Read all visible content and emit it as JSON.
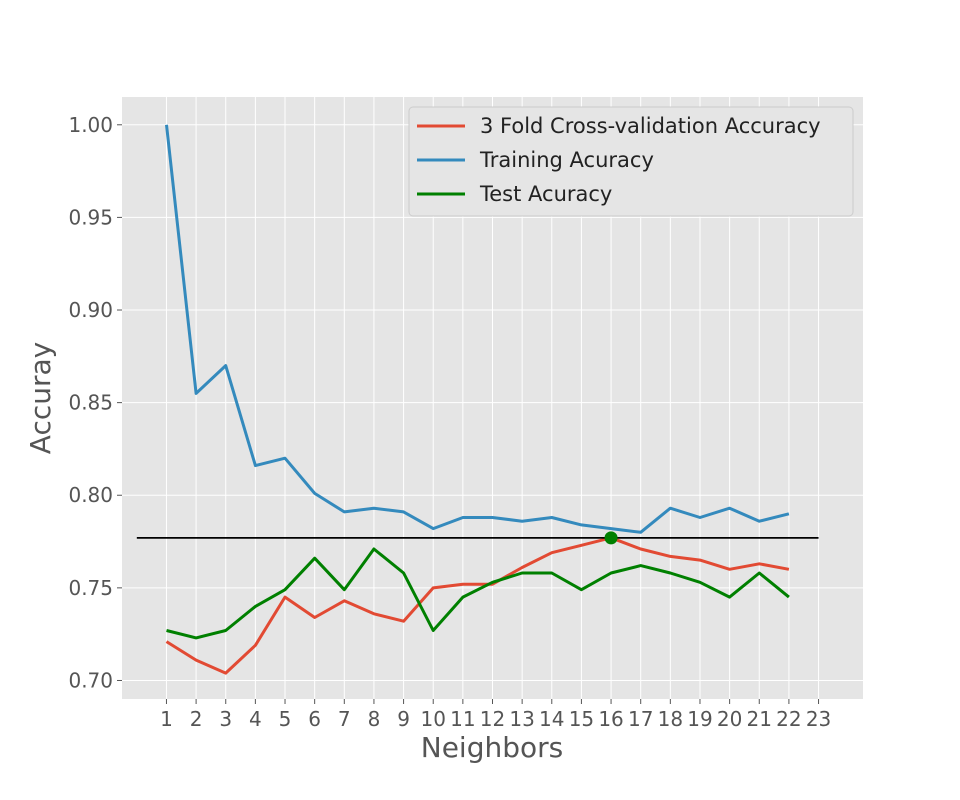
{
  "chart_data": {
    "type": "line",
    "title": "",
    "xlabel": "Neighbors",
    "ylabel": "Accuray",
    "x": [
      1,
      2,
      3,
      4,
      5,
      6,
      7,
      8,
      9,
      10,
      11,
      12,
      13,
      14,
      15,
      16,
      17,
      18,
      19,
      20,
      21,
      22
    ],
    "x_ticks": [
      1,
      2,
      3,
      4,
      5,
      6,
      7,
      8,
      9,
      10,
      11,
      12,
      13,
      14,
      15,
      16,
      17,
      18,
      19,
      20,
      21,
      22,
      23
    ],
    "y_ticks": [
      "0.70",
      "0.75",
      "0.80",
      "0.85",
      "0.90",
      "0.95",
      "1.00"
    ],
    "xlim": [
      -0.5,
      24.5
    ],
    "ylim": [
      0.69,
      1.015
    ],
    "grid": true,
    "legend": "top-right",
    "series": [
      {
        "name": "3 Fold Cross-validation Accuracy",
        "color": "#e24a33",
        "values": [
          0.721,
          0.711,
          0.704,
          0.719,
          0.745,
          0.734,
          0.743,
          0.736,
          0.732,
          0.75,
          0.752,
          0.752,
          0.761,
          0.769,
          0.773,
          0.777,
          0.771,
          0.767,
          0.765,
          0.76,
          0.763,
          0.76
        ]
      },
      {
        "name": "Training Acuracy",
        "color": "#348abd",
        "values": [
          1.0,
          0.855,
          0.87,
          0.816,
          0.82,
          0.801,
          0.791,
          0.793,
          0.791,
          0.782,
          0.788,
          0.788,
          0.786,
          0.788,
          0.784,
          0.782,
          0.78,
          0.793,
          0.788,
          0.793,
          0.786,
          0.79
        ]
      },
      {
        "name": "Test Acuracy",
        "color": "#008000",
        "values": [
          0.727,
          0.723,
          0.727,
          0.74,
          0.749,
          0.766,
          0.749,
          0.771,
          0.758,
          0.727,
          0.745,
          0.753,
          0.758,
          0.758,
          0.749,
          0.758,
          0.762,
          0.758,
          0.753,
          0.745,
          0.758,
          0.745
        ]
      }
    ],
    "reference_line": {
      "y": 0.777,
      "x_range": [
        0,
        23
      ],
      "color": "#000000"
    },
    "highlight_point": {
      "x": 16,
      "y": 0.777,
      "color": "#008000"
    }
  }
}
